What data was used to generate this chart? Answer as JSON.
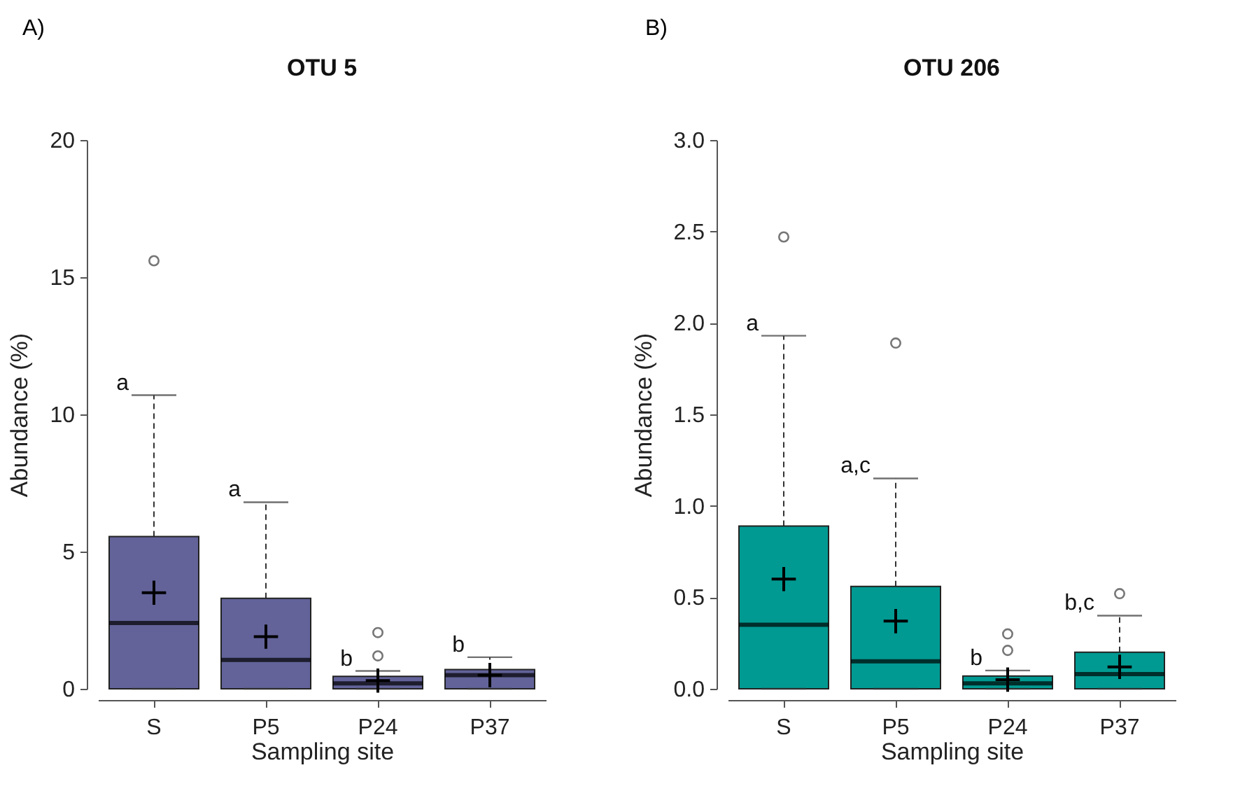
{
  "chart_data": [
    {
      "type": "box",
      "title": "OTU 5",
      "xlabel": "Sampling site",
      "ylabel": "Abundance (%)",
      "categories": [
        "S",
        "P5",
        "P24",
        "P37"
      ],
      "ylim": [
        0,
        20
      ],
      "yticks": [
        0,
        5,
        10,
        15,
        20
      ],
      "grid": false,
      "series": [
        {
          "color": "#63639a",
          "boxes": [
            {
              "low": 0,
              "q1": 0,
              "median": 2.4,
              "q3": 5.55,
              "high": 10.7,
              "mean": 3.5,
              "outliers": [
                15.6
              ]
            },
            {
              "low": 0,
              "q1": 0,
              "median": 1.05,
              "q3": 3.3,
              "high": 6.8,
              "mean": 1.9
            },
            {
              "low": 0,
              "q1": 0,
              "median": 0.2,
              "q3": 0.45,
              "high": 0.65,
              "mean": 0.3,
              "outliers": [
                1.2,
                2.05
              ]
            },
            {
              "low": 0,
              "q1": 0,
              "median": 0.5,
              "q3": 0.7,
              "high": 1.15,
              "mean": 0.5
            }
          ]
        }
      ],
      "annotations": [
        "A)",
        {
          "text": "a",
          "x": "S",
          "y": 10.7
        },
        {
          "text": "a",
          "x": "P5",
          "y": 6.8
        },
        {
          "text": "b",
          "x": "P24",
          "y": 0.65
        },
        {
          "text": "b",
          "x": "P37",
          "y": 1.15
        }
      ]
    },
    {
      "type": "box",
      "title": "OTU 206",
      "xlabel": "Sampling site",
      "ylabel": "Abundance (%)",
      "categories": [
        "S",
        "P5",
        "P24",
        "P37"
      ],
      "ylim": [
        0,
        3
      ],
      "yticks": [
        {
          "value": 0,
          "label": "0.0"
        },
        {
          "value": 0.5,
          "label": "0.5"
        },
        {
          "value": 1,
          "label": "1.0"
        },
        {
          "value": 1.5,
          "label": "1.5"
        },
        {
          "value": 2,
          "label": "2.0"
        },
        {
          "value": 2.5,
          "label": "2.5"
        },
        {
          "value": 3,
          "label": "3.0"
        }
      ],
      "grid": false,
      "series": [
        {
          "color": "#009a92",
          "boxes": [
            {
              "low": 0,
              "q1": 0,
              "median": 0.35,
              "q3": 0.89,
              "high": 1.93,
              "mean": 0.6,
              "outliers": [
                2.47
              ]
            },
            {
              "low": 0,
              "q1": 0,
              "median": 0.15,
              "q3": 0.56,
              "high": 1.15,
              "mean": 0.37,
              "outliers": [
                1.89
              ]
            },
            {
              "low": 0,
              "q1": 0,
              "median": 0.03,
              "q3": 0.07,
              "high": 0.1,
              "mean": 0.05,
              "outliers": [
                0.21,
                0.3
              ]
            },
            {
              "low": 0,
              "q1": 0,
              "median": 0.08,
              "q3": 0.2,
              "high": 0.4,
              "mean": 0.12,
              "outliers": [
                0.52
              ]
            }
          ]
        }
      ],
      "annotations": [
        "B)",
        {
          "text": "a",
          "x": "S",
          "y": 1.93
        },
        {
          "text": "a,c",
          "x": "P5",
          "y": 1.15
        },
        {
          "text": "b",
          "x": "P24",
          "y": 0.1
        },
        {
          "text": "b,c",
          "x": "P37",
          "y": 0.4
        }
      ]
    }
  ]
}
